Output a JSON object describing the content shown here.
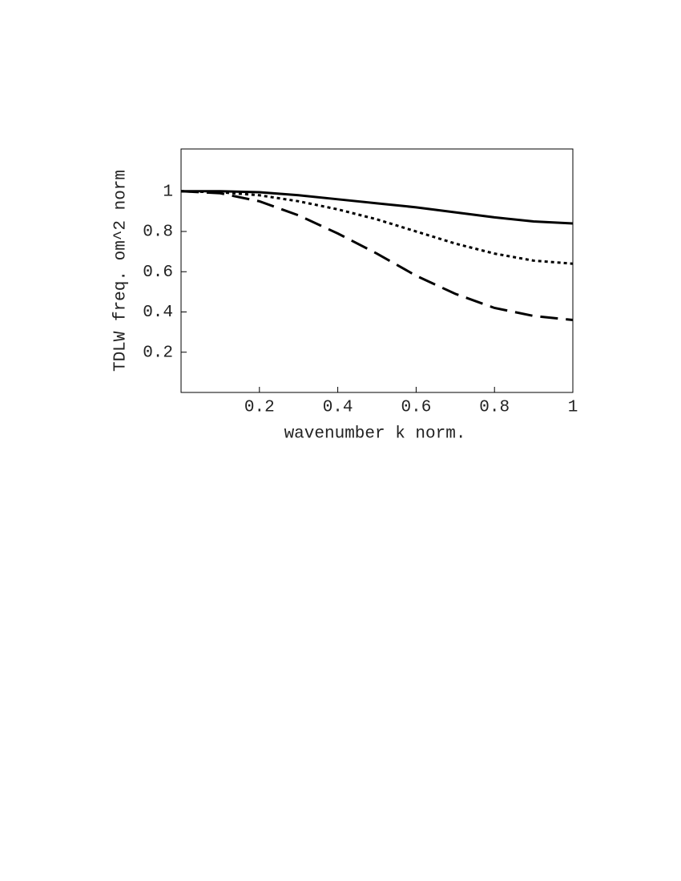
{
  "chart_data": {
    "type": "line",
    "xlabel": "wavenumber k norm.",
    "ylabel": "TDLW freq. om^2 norm",
    "x": [
      0,
      0.1,
      0.2,
      0.3,
      0.4,
      0.5,
      0.6,
      0.7,
      0.8,
      0.9,
      1
    ],
    "series": [
      {
        "color": "#000000",
        "dash": "solid",
        "values": [
          1,
          1,
          0.995,
          0.98,
          0.96,
          0.94,
          0.92,
          0.895,
          0.87,
          0.85,
          0.84
        ]
      },
      {
        "color": "#000000",
        "dash": "dotted",
        "values": [
          1,
          0.995,
          0.98,
          0.95,
          0.91,
          0.86,
          0.8,
          0.74,
          0.69,
          0.655,
          0.64
        ]
      },
      {
        "color": "#000000",
        "dash": "dashed",
        "values": [
          1,
          0.99,
          0.95,
          0.88,
          0.79,
          0.69,
          0.58,
          0.49,
          0.42,
          0.38,
          0.36
        ]
      }
    ],
    "xlim": [
      0,
      1
    ],
    "ylim": [
      0,
      1.21
    ],
    "xticks": [
      0.2,
      0.4,
      0.6,
      0.8,
      1
    ],
    "yticks": [
      0.2,
      0.4,
      0.6,
      0.8,
      1
    ],
    "grid": false
  }
}
